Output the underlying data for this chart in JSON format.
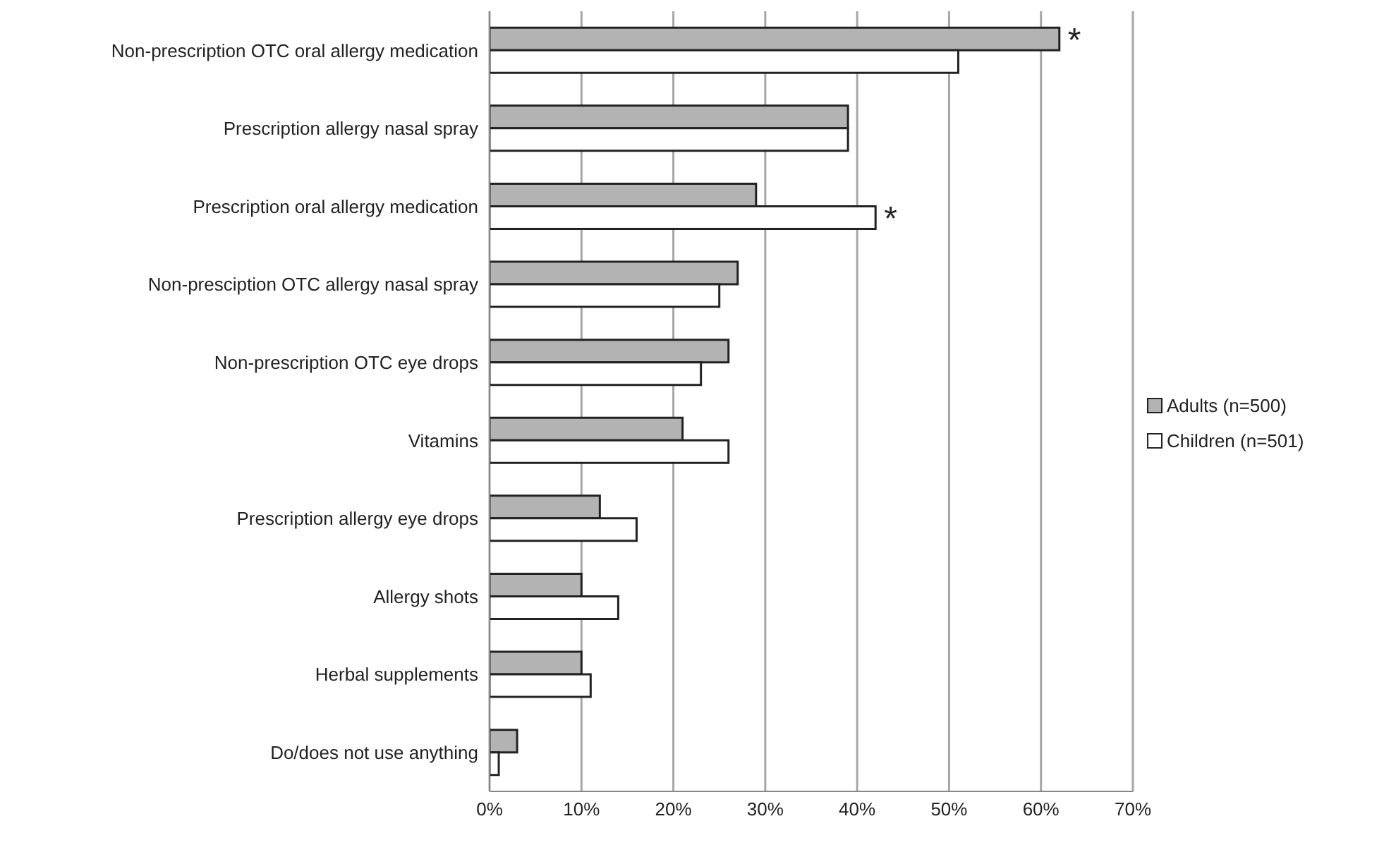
{
  "chart_data": {
    "type": "bar",
    "orientation": "horizontal",
    "categories": [
      "Non-prescription OTC oral allergy medication",
      "Prescription allergy nasal spray",
      "Prescription oral allergy medication",
      "Non-presciption OTC allergy nasal spray",
      "Non-prescription OTC eye drops",
      "Vitamins",
      "Prescription allergy eye drops",
      "Allergy shots",
      "Herbal supplements",
      "Do/does not use anything"
    ],
    "series": [
      {
        "name": "Adults (n=500)",
        "color": "#b3b3b3",
        "values": [
          62,
          39,
          29,
          27,
          26,
          21,
          12,
          10,
          10,
          3
        ]
      },
      {
        "name": "Children (n=501)",
        "color": "#ffffff",
        "values": [
          51,
          39,
          42,
          25,
          23,
          26,
          16,
          14,
          11,
          1
        ]
      }
    ],
    "xlim": [
      0,
      70
    ],
    "xticks": [
      {
        "value": 0,
        "label": "0%"
      },
      {
        "value": 10,
        "label": "10%"
      },
      {
        "value": 20,
        "label": "20%"
      },
      {
        "value": 30,
        "label": "30%"
      },
      {
        "value": 40,
        "label": "40%"
      },
      {
        "value": 50,
        "label": "50%"
      },
      {
        "value": 60,
        "label": "60%"
      },
      {
        "value": 70,
        "label": "70%"
      }
    ],
    "grid": "x",
    "legend": "right",
    "annotations": [
      {
        "text": "*",
        "x": 62,
        "y": "Non-prescription OTC oral allergy medication"
      },
      {
        "text": "*",
        "x": 42,
        "y": "Prescription oral allergy medication"
      }
    ]
  }
}
